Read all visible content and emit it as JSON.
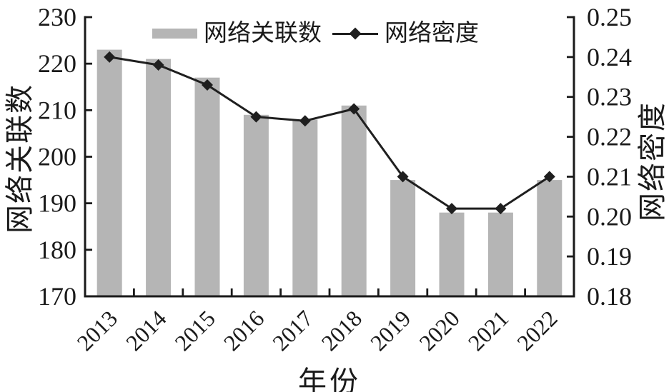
{
  "chart_data": {
    "type": "bar",
    "subtype": "bar+line dual axis",
    "categories": [
      "2013",
      "2014",
      "2015",
      "2016",
      "2017",
      "2018",
      "2019",
      "2020",
      "2021",
      "2022"
    ],
    "series": [
      {
        "name": "网络关联数",
        "type": "bar",
        "axis": "left",
        "values": [
          223,
          221,
          217,
          209,
          208,
          211,
          195,
          188,
          188,
          195
        ]
      },
      {
        "name": "网络密度",
        "type": "line",
        "axis": "right",
        "marker": "diamond",
        "values": [
          0.24,
          0.238,
          0.233,
          0.225,
          0.224,
          0.227,
          0.21,
          0.202,
          0.202,
          0.21
        ]
      }
    ],
    "title": "",
    "xlabel": "年份",
    "left_axis": {
      "label": "网络关联数",
      "min": 170,
      "max": 230,
      "step": 10,
      "ticks": [
        "230",
        "220",
        "210",
        "200",
        "190",
        "180",
        "170"
      ]
    },
    "right_axis": {
      "label": "网络密度",
      "min": 0.18,
      "max": 0.25,
      "step": 0.01,
      "ticks": [
        "0.25",
        "0.24",
        "0.23",
        "0.22",
        "0.21",
        "0.20",
        "0.19",
        "0.18"
      ]
    },
    "grid": false,
    "legend_position": "top-center",
    "legend": [
      {
        "label": "网络关联数",
        "swatch": "gray-bar"
      },
      {
        "label": "网络密度",
        "swatch": "line-with-diamond"
      }
    ]
  },
  "colors": {
    "bar": "#b5b5b5",
    "line": "#1f1f1f",
    "axis": "#1a1a1a",
    "text": "#1a1a1a",
    "background": "#ffffff"
  }
}
